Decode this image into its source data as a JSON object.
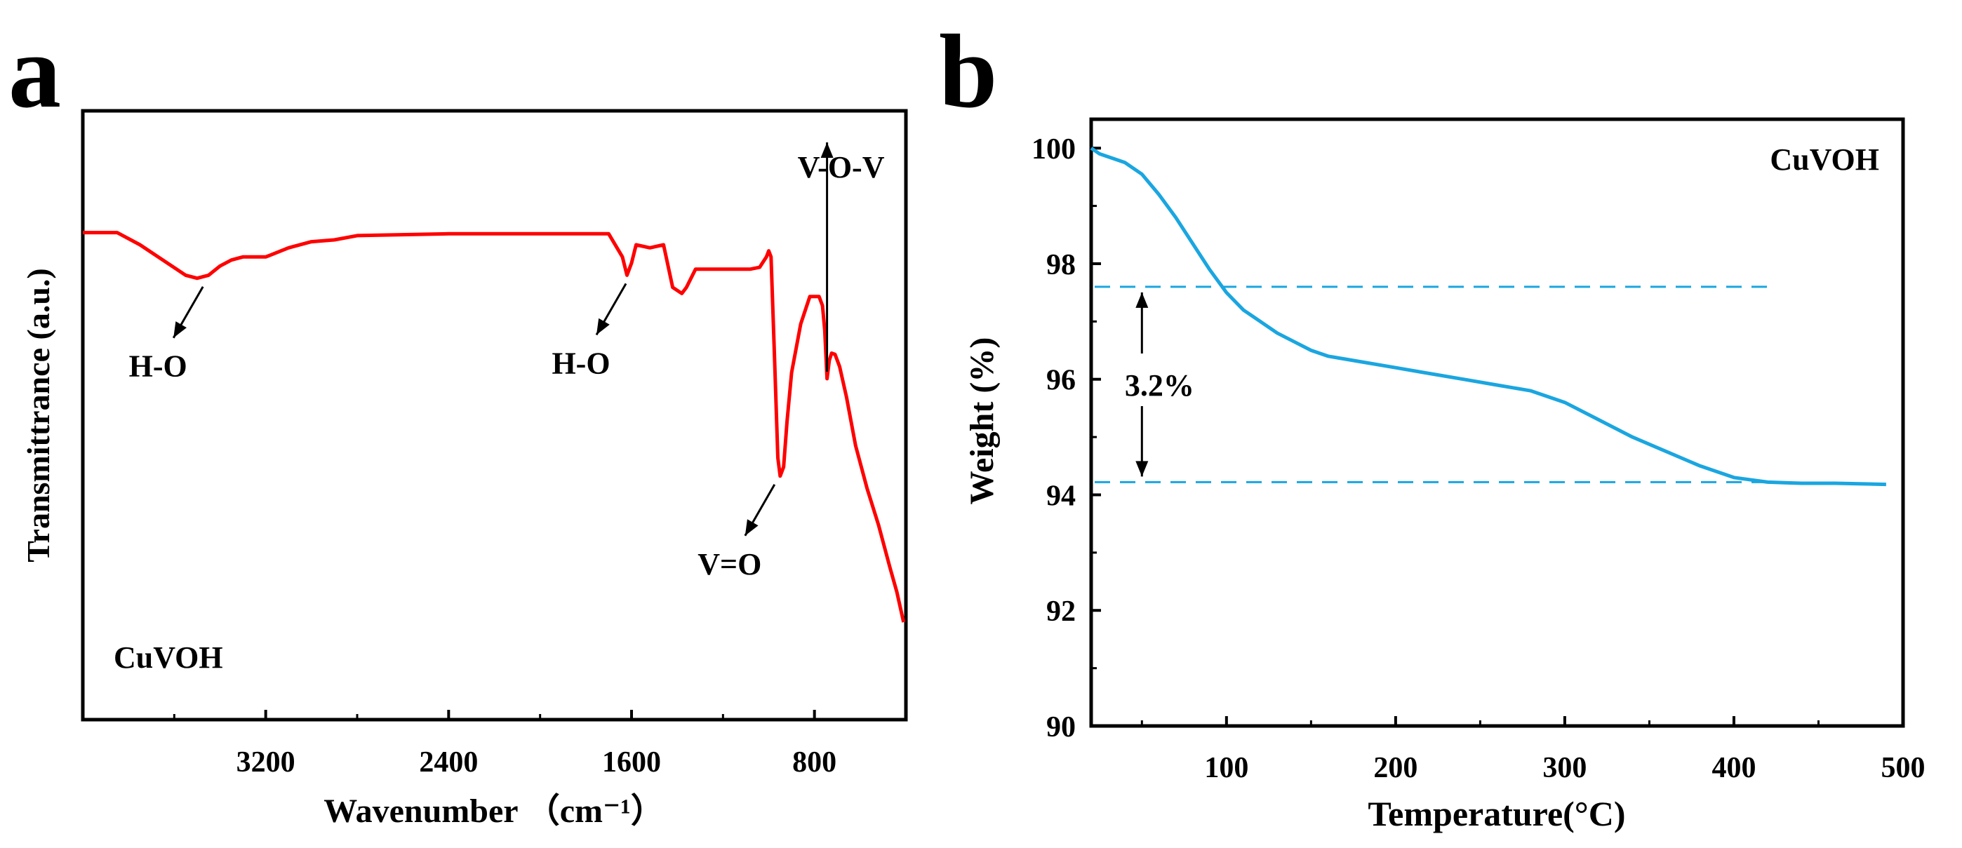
{
  "chart_data": [
    {
      "panel_label": "a",
      "type": "line",
      "title": "",
      "xlabel": "Wavenumber （cm⁻¹）",
      "ylabel": "Transmittrance (a.u.)",
      "xlim": [
        4000,
        400
      ],
      "ylim": [
        0,
        100
      ],
      "x_ticks": [
        3200,
        2400,
        1600,
        800
      ],
      "x_tick_labels": [
        "3200",
        "2400",
        "1600",
        "800"
      ],
      "y_ticks": [],
      "sample_label": "CuVOH",
      "color": "#ff0000",
      "series": [
        {
          "name": "CuVOH",
          "x": [
            4000,
            3850,
            3750,
            3650,
            3550,
            3500,
            3450,
            3400,
            3350,
            3300,
            3200,
            3100,
            3000,
            2900,
            2800,
            2400,
            2000,
            1700,
            1640,
            1620,
            1600,
            1580,
            1520,
            1460,
            1420,
            1380,
            1360,
            1320,
            1250,
            1150,
            1080,
            1040,
            1010,
            1000,
            990,
            975,
            960,
            950,
            935,
            920,
            900,
            860,
            820,
            780,
            765,
            755,
            745,
            735,
            725,
            710,
            690,
            660,
            620,
            570,
            520,
            470,
            440,
            410
          ],
          "y": [
            80,
            80,
            78,
            75.5,
            73,
            72.5,
            73,
            74.5,
            75.5,
            76,
            76,
            77.5,
            78.5,
            78.8,
            79.5,
            79.8,
            79.8,
            79.8,
            76,
            73,
            75,
            78,
            77.5,
            78,
            71,
            70,
            71,
            74,
            74,
            74,
            74,
            74.3,
            76,
            77,
            76,
            60,
            43,
            40,
            41.5,
            49,
            57,
            65,
            69.5,
            69.5,
            68,
            64,
            56,
            59,
            60.2,
            60,
            58,
            53,
            45,
            38,
            32,
            25,
            21,
            16
          ]
        }
      ],
      "annotations": [
        {
          "text": "H-O",
          "x": 3450,
          "y": 72.5,
          "arrow": "down-left"
        },
        {
          "text": "H-O",
          "x": 1600,
          "y": 73,
          "arrow": "down-left"
        },
        {
          "text": "V=O",
          "x": 950,
          "y": 40,
          "arrow": "down-left"
        },
        {
          "text": "V-O-V",
          "x": 745,
          "y": 56,
          "arrow": "up"
        }
      ]
    },
    {
      "panel_label": "b",
      "type": "line",
      "title": "",
      "xlabel": "Temperature(°C)",
      "ylabel": "Weight (%)",
      "xlim": [
        20,
        500
      ],
      "ylim": [
        90,
        100.5
      ],
      "x_ticks": [
        100,
        200,
        300,
        400,
        500
      ],
      "x_tick_labels": [
        "100",
        "200",
        "300",
        "400",
        "500"
      ],
      "y_ticks": [
        90,
        92,
        94,
        96,
        98,
        100
      ],
      "y_tick_labels": [
        "90",
        "92",
        "94",
        "96",
        "98",
        "100"
      ],
      "sample_label": "CuVOH",
      "color": "#1aa6e0",
      "series": [
        {
          "name": "CuVOH",
          "x": [
            20,
            25,
            30,
            40,
            50,
            60,
            70,
            80,
            90,
            100,
            110,
            120,
            130,
            140,
            150,
            160,
            170,
            180,
            200,
            220,
            240,
            260,
            280,
            300,
            320,
            340,
            360,
            380,
            400,
            420,
            440,
            460,
            490
          ],
          "y": [
            100,
            99.9,
            99.85,
            99.75,
            99.55,
            99.2,
            98.8,
            98.35,
            97.9,
            97.5,
            97.2,
            97.0,
            96.8,
            96.65,
            96.5,
            96.4,
            96.35,
            96.3,
            96.2,
            96.1,
            96.0,
            95.9,
            95.8,
            95.6,
            95.3,
            95.0,
            94.75,
            94.5,
            94.3,
            94.22,
            94.2,
            94.2,
            94.18
          ]
        }
      ],
      "reference_lines": [
        97.6,
        94.22
      ],
      "annotations": [
        {
          "text": "3.2%",
          "x": 50,
          "y": 95.9
        }
      ]
    }
  ]
}
